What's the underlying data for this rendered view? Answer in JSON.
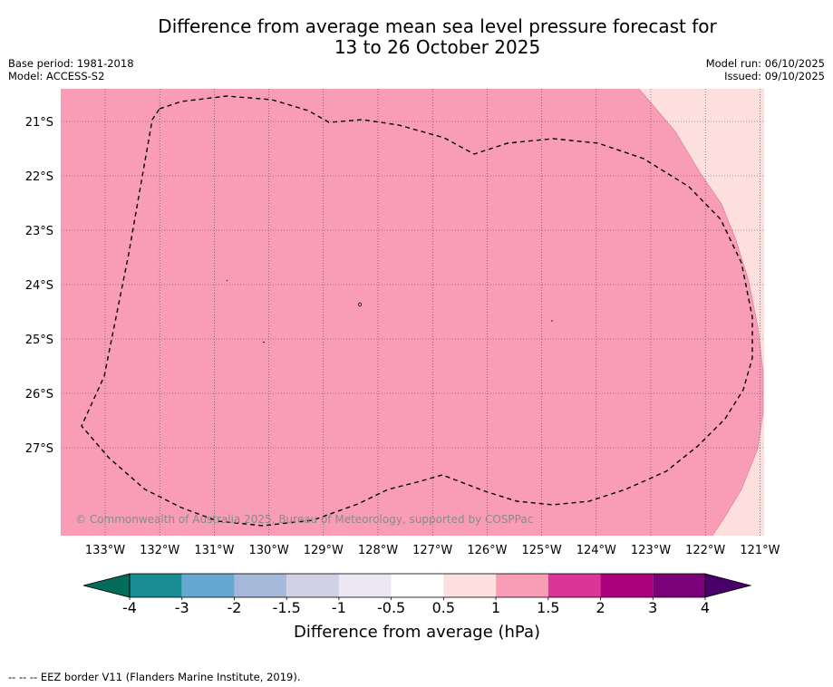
{
  "title": {
    "line1": "Difference from average mean sea level pressure forecast for",
    "line2": "13 to 26 October 2025"
  },
  "meta_left": {
    "base_period": "Base period: 1981-2018",
    "model": "Model: ACCESS-S2"
  },
  "meta_right": {
    "model_run": "Model run: 06/10/2025",
    "issued": "Issued: 09/10/2025"
  },
  "map": {
    "lat_labels": [
      "21°S",
      "22°S",
      "23°S",
      "24°S",
      "25°S",
      "26°S",
      "27°S"
    ],
    "lon_labels": [
      "133°W",
      "132°W",
      "131°W",
      "130°W",
      "129°W",
      "128°W",
      "127°W",
      "126°W",
      "125°W",
      "124°W",
      "123°W",
      "122°W",
      "121°W"
    ],
    "copyright": "© Commonwealth of Australia 2025, Bureau of Meteorology, supported by COSPPac",
    "fill_colors": {
      "1 to 1.5": "#f99db7",
      "0.5 to 1": "#fde0de"
    },
    "eez_color": "#000000"
  },
  "colorbar": {
    "title": "Difference from average (hPa)",
    "tick_labels": [
      "-4",
      "-3",
      "-2",
      "-1.5",
      "-1",
      "-0.5",
      "0.5",
      "1",
      "1.5",
      "2",
      "3",
      "4"
    ],
    "colors": [
      "#1a8c94",
      "#66a9d0",
      "#a6b9da",
      "#d0d1e6",
      "#ece7f2",
      "#ffffff",
      "#fde0de",
      "#f99db7",
      "#dd3497",
      "#ae017e",
      "#7a0177"
    ],
    "extend_low_color": "#016c59",
    "extend_high_color": "#49006a"
  },
  "footnote": "--  --  -- EEZ border V11 (Flanders Marine Institute, 2019)."
}
